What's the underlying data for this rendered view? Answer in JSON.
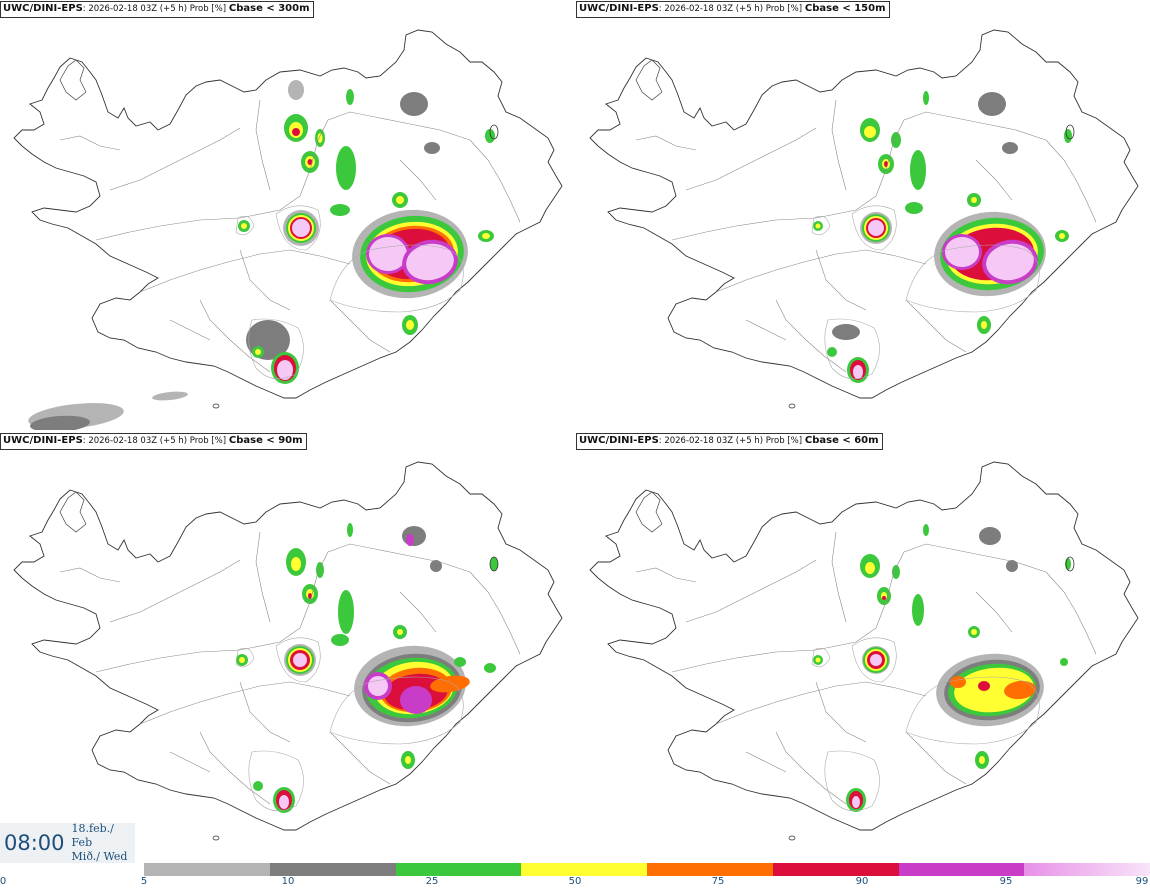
{
  "panels": [
    {
      "model": "UWC/DINI-EPS",
      "meta": ": 2026-02-18 03Z (+5 h) Prob [%]",
      "variable": "Cbase < 300m"
    },
    {
      "model": "UWC/DINI-EPS",
      "meta": ": 2026-02-18 03Z (+5 h) Prob [%]",
      "variable": "Cbase < 150m"
    },
    {
      "model": "UWC/DINI-EPS",
      "meta": ": 2026-02-18 03Z (+5 h) Prob [%]",
      "variable": "Cbase < 90m"
    },
    {
      "model": "UWC/DINI-EPS",
      "meta": ": 2026-02-18 03Z (+5 h) Prob [%]",
      "variable": "Cbase < 60m"
    }
  ],
  "valid_time": {
    "hour": "08:00",
    "date_line1": "18.feb./ Feb",
    "date_line2": "Mið./ Wed"
  },
  "legend": {
    "ticks": [
      "0",
      "5",
      "10",
      "25",
      "50",
      "75",
      "90",
      "95",
      "99"
    ],
    "colors": [
      "#b4b4b4",
      "#7d7d7d",
      "#3cc83c",
      "#ffff32",
      "#ff6e00",
      "#dc0f3c",
      "#c83cc8",
      "#f5c8f5"
    ]
  }
}
